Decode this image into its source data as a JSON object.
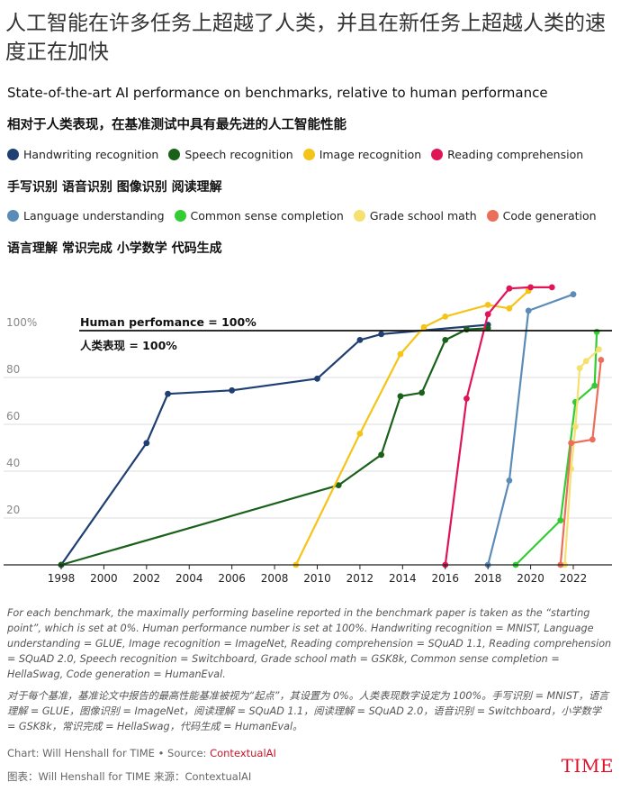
{
  "headline": "人工智能在许多任务上超越了人类，并且在新任务上超越人类的速度正在加快",
  "chart_data": {
    "type": "line",
    "title": "State-of-the-art AI performance on benchmarks, relative to human performance",
    "title_zh": "相对于人类表现，在基准测试中具有最先进的人工智能性能",
    "xlim": [
      1997.3,
      2023.6
    ],
    "ylim": [
      0,
      120
    ],
    "x_ticks": [
      1998,
      2000,
      2002,
      2004,
      2006,
      2008,
      2010,
      2012,
      2014,
      2016,
      2018,
      2020,
      2022
    ],
    "x_tick_labels": [
      "1998",
      "2000",
      "2002",
      "2004",
      "2006",
      "2008",
      "2010",
      "2012",
      "2014",
      "2016",
      "2018",
      "2020",
      "2022"
    ],
    "y_ticks": [
      20,
      40,
      60,
      80,
      100
    ],
    "y_tick_labels": [
      "20",
      "40",
      "60",
      "80",
      "100%"
    ],
    "grid": true,
    "reference_line": {
      "value": 100,
      "label": "Human perfomance = 100%",
      "label_zh": "人类表现 = 100%"
    },
    "series": [
      {
        "name": "Handwriting recognition",
        "color": "#1f3f73",
        "points": [
          [
            1998,
            0
          ],
          [
            2002,
            52
          ],
          [
            2003,
            73
          ],
          [
            2006,
            74.5
          ],
          [
            2010,
            79.5
          ],
          [
            2012,
            96
          ],
          [
            2013,
            98.5
          ],
          [
            2018,
            102.5
          ]
        ]
      },
      {
        "name": "Speech recognition",
        "color": "#196119",
        "points": [
          [
            1998,
            0
          ],
          [
            2011,
            34
          ],
          [
            2013,
            47
          ],
          [
            2013.9,
            72
          ],
          [
            2014.9,
            73.5
          ],
          [
            2016,
            96
          ],
          [
            2017,
            100.5
          ],
          [
            2018,
            101
          ]
        ]
      },
      {
        "name": "Image recognition",
        "color": "#f5c419",
        "points": [
          [
            2009,
            0
          ],
          [
            2012,
            56
          ],
          [
            2013.9,
            90
          ],
          [
            2015,
            101.5
          ],
          [
            2016,
            106
          ],
          [
            2018,
            111
          ],
          [
            2019,
            109.5
          ],
          [
            2019.9,
            117
          ]
        ]
      },
      {
        "name": "Reading comprehension",
        "color": "#e01556",
        "points": [
          [
            2016,
            0
          ],
          [
            2017,
            71
          ],
          [
            2018,
            107
          ],
          [
            2019,
            118
          ],
          [
            2020,
            118.5
          ],
          [
            2021,
            118.5
          ]
        ]
      },
      {
        "name": "Language understanding",
        "color": "#5b8cb8",
        "points": [
          [
            2018,
            0
          ],
          [
            2019,
            36
          ],
          [
            2019.9,
            108.5
          ],
          [
            2022,
            115.5
          ]
        ]
      },
      {
        "name": "Common sense completion",
        "color": "#33cc33",
        "points": [
          [
            2019.3,
            0
          ],
          [
            2021.4,
            19
          ],
          [
            2022.1,
            69.5
          ],
          [
            2023,
            76.5
          ],
          [
            2023.1,
            99.5
          ]
        ]
      },
      {
        "name": "Grade school math",
        "color": "#f5e070",
        "points": [
          [
            2021.6,
            0
          ],
          [
            2021.9,
            41
          ],
          [
            2022.1,
            59
          ],
          [
            2022.3,
            84
          ],
          [
            2022.6,
            87
          ],
          [
            2023.2,
            92
          ]
        ]
      },
      {
        "name": "Code generation",
        "color": "#eb6e5a",
        "points": [
          [
            2021.4,
            0
          ],
          [
            2021.9,
            52
          ],
          [
            2022.9,
            53.5
          ],
          [
            2023.3,
            87.5
          ]
        ]
      }
    ]
  },
  "legend_zh": {
    "row1": "手写识别 语音识别 图像识别 阅读理解",
    "row2": "语言理解 常识完成 小学数学 代码生成"
  },
  "notes": {
    "en": "For each benchmark, the maximally performing baseline reported in the benchmark paper is taken as the “starting point”, which is set at 0%. Human performance number is set at 100%. Handwriting recognition = MNIST, Language understanding = GLUE, Image recognition = ImageNet, Reading comprehension = SQuAD 1.1, Reading comprehension = SQuAD 2.0, Speech recognition = Switchboard, Grade school math = GSK8k, Common sense completion = HellaSwag, Code generation = HumanEval.",
    "zh": "对于每个基准，基准论文中报告的最高性能基准被视为“起点”，其设置为 0%。人类表现数字设定为 100%。手写识别 = MNIST，语言理解 = GLUE，图像识别 = ImageNet，阅读理解 = SQuAD 1.1，阅读理解 = SQuAD 2.0，语音识别 = Switchboard，小学数学 = GSK8k，常识完成 = HellaSwag，代码生成 = HumanEval。"
  },
  "credits": {
    "en_prefix": "Chart: Will Henshall for TIME • Source: ",
    "en_source": "ContextualAI",
    "zh": "图表：Will Henshall for TIME 来源：ContextualAI"
  },
  "logo_text": "TIME"
}
